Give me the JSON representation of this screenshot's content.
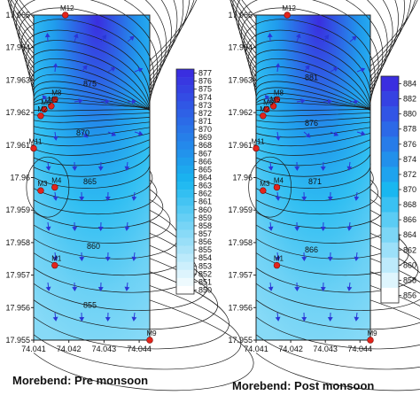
{
  "chart_data": [
    {
      "type": "contour",
      "caption": "Morebend: Pre monsoon",
      "x_ticks": [
        "74.041",
        "74.042",
        "74.043",
        "74.044"
      ],
      "y_ticks": [
        "17.965",
        "17.964",
        "17.963",
        "17.962",
        "17.961",
        "17.96",
        "17.959",
        "17.958",
        "17.957",
        "17.956",
        "17.955"
      ],
      "xlim": [
        74.041,
        74.0443
      ],
      "ylim": [
        17.955,
        17.965
      ],
      "colorbar": {
        "levels": [
          "877",
          "876",
          "875",
          "874",
          "873",
          "872",
          "871",
          "870",
          "869",
          "868",
          "867",
          "866",
          "865",
          "864",
          "863",
          "862",
          "861",
          "860",
          "859",
          "858",
          "857",
          "856",
          "855",
          "854",
          "853",
          "852",
          "851",
          "850"
        ],
        "color_high": "#3a2ee0",
        "color_low": "#ffffff"
      },
      "contour_labels": [
        {
          "text": "875",
          "x": 74.0426,
          "y": 17.9628
        },
        {
          "text": "870",
          "x": 74.0424,
          "y": 17.9613
        },
        {
          "text": "865",
          "x": 74.0426,
          "y": 17.9598
        },
        {
          "text": "860",
          "x": 74.0427,
          "y": 17.9578
        },
        {
          "text": "855",
          "x": 74.0426,
          "y": 17.956
        }
      ],
      "wells": [
        {
          "name": "M12",
          "x": 74.0419,
          "y": 17.965
        },
        {
          "name": "M8",
          "x": 74.0416,
          "y": 17.9624
        },
        {
          "name": "M5",
          "x": 74.0415,
          "y": 17.9622
        },
        {
          "name": "M6",
          "x": 74.0413,
          "y": 17.9621
        },
        {
          "name": "M2",
          "x": 74.0412,
          "y": 17.9619
        },
        {
          "name": "M11",
          "x": 74.041,
          "y": 17.9609
        },
        {
          "name": "M3",
          "x": 74.0412,
          "y": 17.9596
        },
        {
          "name": "M4",
          "x": 74.0416,
          "y": 17.9597
        },
        {
          "name": "M1",
          "x": 74.0416,
          "y": 17.9573
        },
        {
          "name": "M9",
          "x": 74.0443,
          "y": 17.955
        }
      ]
    },
    {
      "type": "contour",
      "caption": "Morebend: Post monsoon",
      "x_ticks": [
        "74.041",
        "74.042",
        "74.043",
        "74.044"
      ],
      "y_ticks": [
        "17.965",
        "17.964",
        "17.963",
        "17.962",
        "17.961",
        "17.96",
        "17.959",
        "17.958",
        "17.957",
        "17.956",
        "17.955"
      ],
      "xlim": [
        74.041,
        74.0443
      ],
      "ylim": [
        17.955,
        17.965
      ],
      "colorbar": {
        "levels": [
          "884",
          "882",
          "880",
          "878",
          "876",
          "874",
          "872",
          "870",
          "868",
          "866",
          "864",
          "862",
          "860",
          "858",
          "856"
        ],
        "color_high": "#3a2ee0",
        "color_low": "#ffffff"
      },
      "contour_labels": [
        {
          "text": "881",
          "x": 74.0426,
          "y": 17.963
        },
        {
          "text": "876",
          "x": 74.0426,
          "y": 17.9616
        },
        {
          "text": "871",
          "x": 74.0427,
          "y": 17.9598
        },
        {
          "text": "866",
          "x": 74.0426,
          "y": 17.9577
        }
      ],
      "wells": [
        {
          "name": "M12",
          "x": 74.0419,
          "y": 17.965
        },
        {
          "name": "M8",
          "x": 74.0416,
          "y": 17.9624
        },
        {
          "name": "M5",
          "x": 74.0415,
          "y": 17.9622
        },
        {
          "name": "M6",
          "x": 74.0413,
          "y": 17.9621
        },
        {
          "name": "M2",
          "x": 74.0412,
          "y": 17.9619
        },
        {
          "name": "M11",
          "x": 74.041,
          "y": 17.9609
        },
        {
          "name": "M3",
          "x": 74.0412,
          "y": 17.9596
        },
        {
          "name": "M4",
          "x": 74.0416,
          "y": 17.9597
        },
        {
          "name": "M1",
          "x": 74.0416,
          "y": 17.9573
        },
        {
          "name": "M9",
          "x": 74.0443,
          "y": 17.955
        }
      ]
    }
  ]
}
